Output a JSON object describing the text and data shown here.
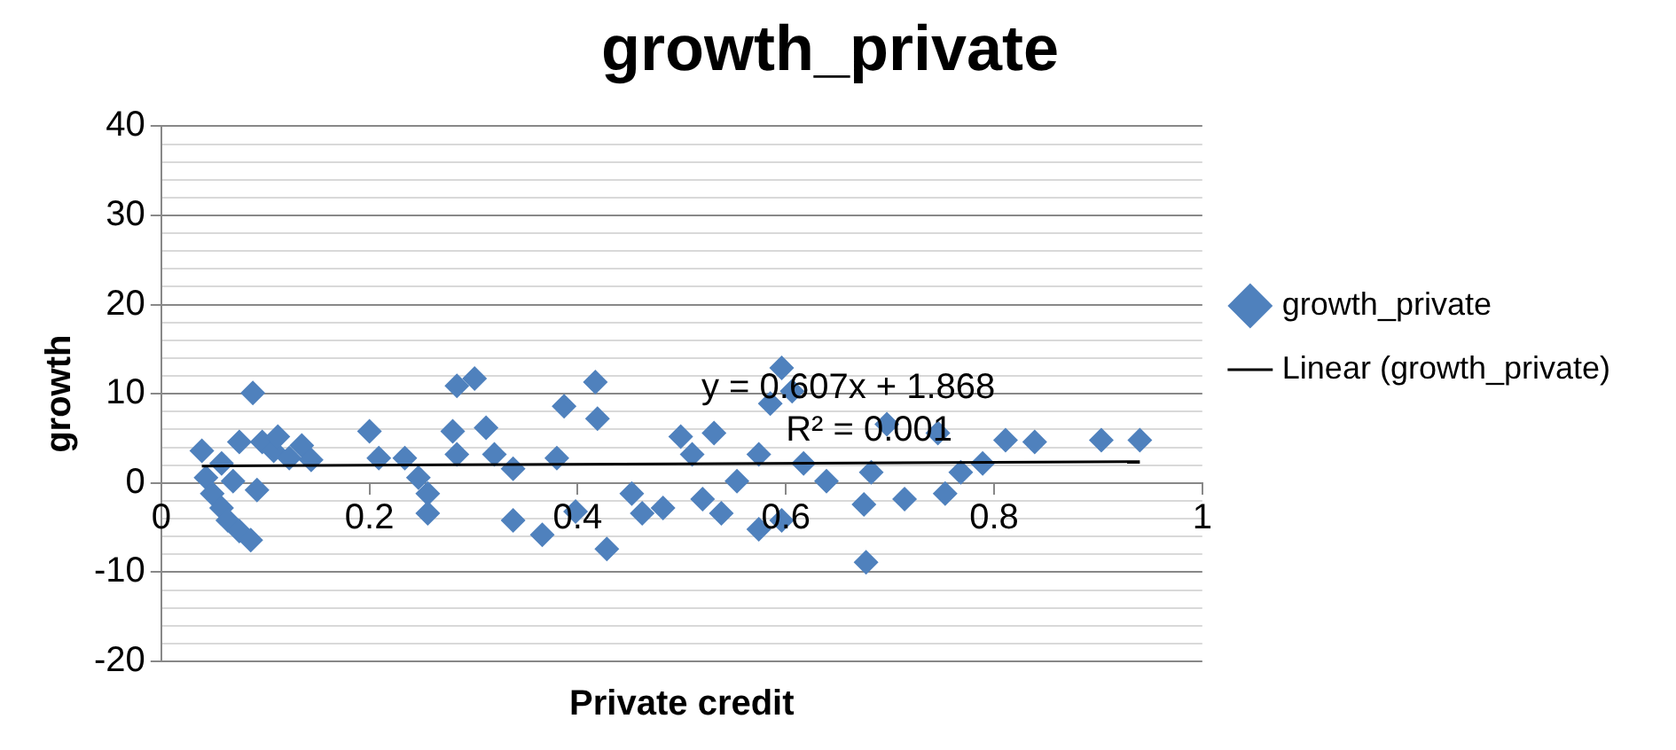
{
  "chart_data": {
    "type": "scatter",
    "title": "growth_private",
    "xlabel": "Private credit",
    "ylabel": "growth",
    "xlim": [
      0,
      1
    ],
    "xticks": [
      0,
      0.2,
      0.4,
      0.6,
      0.8,
      1
    ],
    "ylim": [
      -20,
      40
    ],
    "yticks": [
      -20,
      {
        "value": -18,
        "label": null
      },
      {
        "value": -16,
        "label": null
      },
      {
        "value": -14,
        "label": null
      },
      {
        "value": -12,
        "label": null
      },
      -10,
      {
        "value": -8,
        "label": null
      },
      {
        "value": -6,
        "label": null
      },
      {
        "value": -4,
        "label": null
      },
      {
        "value": -2,
        "label": null
      },
      0,
      {
        "value": 2,
        "label": null
      },
      {
        "value": 4,
        "label": null
      },
      {
        "value": 6,
        "label": null
      },
      {
        "value": 8,
        "label": null
      },
      10,
      {
        "value": 12,
        "label": null
      },
      {
        "value": 14,
        "label": null
      },
      {
        "value": 16,
        "label": null
      },
      {
        "value": 18,
        "label": null
      },
      20,
      {
        "value": 22,
        "label": null
      },
      {
        "value": 24,
        "label": null
      },
      {
        "value": 26,
        "label": null
      },
      {
        "value": 28,
        "label": null
      },
      30,
      {
        "value": 32,
        "label": null
      },
      {
        "value": 34,
        "label": null
      },
      {
        "value": 36,
        "label": null
      },
      {
        "value": 38,
        "label": null
      },
      40
    ],
    "grid": "y",
    "legend": "right",
    "annotations": [
      "y = 0.607x + 1.868",
      "R² = 0.001"
    ],
    "series": [
      {
        "name": "growth_private",
        "type": "scatter",
        "marker": "diamond",
        "color": "#4f81bd",
        "x": [
          0.039,
          0.043,
          0.049,
          0.058,
          0.064,
          0.075,
          0.086,
          0.088,
          0.075,
          0.097,
          0.108,
          0.092,
          0.112,
          0.123,
          0.135,
          0.144,
          0.058,
          0.069,
          0.2,
          0.209,
          0.234,
          0.247,
          0.256,
          0.256,
          0.284,
          0.284,
          0.301,
          0.28,
          0.312,
          0.32,
          0.338,
          0.338,
          0.366,
          0.38,
          0.387,
          0.398,
          0.417,
          0.419,
          0.428,
          0.452,
          0.462,
          0.596,
          0.606,
          0.585,
          0.94,
          0.903,
          0.839,
          0.789,
          0.753,
          0.675,
          0.677,
          0.574,
          0.596,
          0.538,
          0.482,
          0.697,
          0.768,
          0.746,
          0.811,
          0.51,
          0.617,
          0.639,
          0.682,
          0.714,
          0.553,
          0.52,
          0.574,
          0.499,
          0.531
        ],
        "values": [
          3.6,
          0.6,
          -1.2,
          -2.8,
          -4.2,
          -5.4,
          -6.4,
          10.1,
          4.6,
          4.6,
          3.6,
          -0.8,
          5.2,
          2.8,
          4.2,
          2.6,
          2.2,
          0.2,
          5.8,
          2.8,
          2.8,
          0.6,
          -1.2,
          -3.4,
          3.2,
          10.9,
          11.7,
          5.8,
          6.2,
          3.2,
          1.6,
          -4.2,
          -5.8,
          2.8,
          8.6,
          -3.2,
          11.3,
          7.2,
          -7.4,
          -1.2,
          -3.4,
          12.9,
          10.3,
          8.9,
          4.8,
          4.8,
          4.6,
          2.2,
          -1.2,
          -2.4,
          -8.9,
          -5.2,
          -4.2,
          -3.4,
          -2.8,
          6.6,
          1.2,
          5.6,
          4.8,
          3.2,
          2.2,
          0.2,
          1.2,
          -1.8,
          0.2,
          -1.8,
          3.2,
          5.2,
          5.6
        ]
      },
      {
        "name": "Linear (growth_private)",
        "type": "line",
        "marker": "none",
        "line_style": "solid",
        "color": "#000000",
        "x": [
          0.039,
          0.94
        ],
        "values": [
          1.9,
          2.4
        ]
      }
    ]
  }
}
